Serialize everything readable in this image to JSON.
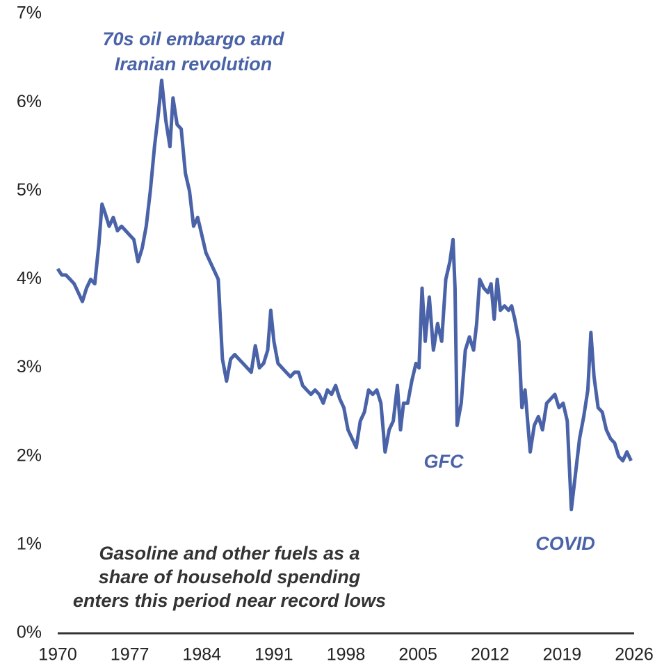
{
  "chart_data": {
    "type": "line",
    "series": [
      {
        "color": "#4a63a8",
        "x": [
          1970.0,
          1970.4,
          1970.8,
          1971.2,
          1971.6,
          1972.0,
          1972.4,
          1972.8,
          1973.2,
          1973.6,
          1974.0,
          1974.3,
          1974.6,
          1975.0,
          1975.4,
          1975.8,
          1976.2,
          1976.6,
          1977.0,
          1977.4,
          1977.8,
          1978.2,
          1978.6,
          1979.0,
          1979.4,
          1979.8,
          1980.1,
          1980.5,
          1980.9,
          1981.2,
          1981.6,
          1982.0,
          1982.4,
          1982.8,
          1983.2,
          1983.6,
          1984.0,
          1984.4,
          1984.8,
          1985.2,
          1985.6,
          1986.0,
          1986.4,
          1986.8,
          1987.2,
          1987.6,
          1988.0,
          1988.4,
          1988.8,
          1989.2,
          1989.6,
          1990.0,
          1990.4,
          1990.7,
          1991.0,
          1991.4,
          1991.8,
          1992.2,
          1992.6,
          1993.0,
          1993.4,
          1993.8,
          1994.2,
          1994.6,
          1995.0,
          1995.4,
          1995.8,
          1996.2,
          1996.6,
          1997.0,
          1997.4,
          1997.8,
          1998.2,
          1998.6,
          1999.0,
          1999.4,
          1999.8,
          2000.2,
          2000.6,
          2001.0,
          2001.4,
          2001.8,
          2002.2,
          2002.6,
          2003.0,
          2003.3,
          2003.6,
          2004.0,
          2004.4,
          2004.8,
          2005.1,
          2005.4,
          2005.7,
          2006.1,
          2006.5,
          2006.9,
          2007.3,
          2007.7,
          2008.1,
          2008.4,
          2008.6,
          2008.8,
          2009.2,
          2009.6,
          2010.0,
          2010.4,
          2010.7,
          2011.0,
          2011.4,
          2011.8,
          2012.1,
          2012.4,
          2012.7,
          2013.0,
          2013.4,
          2013.8,
          2014.1,
          2014.4,
          2014.8,
          2015.1,
          2015.4,
          2015.9,
          2016.3,
          2016.7,
          2017.1,
          2017.5,
          2017.9,
          2018.3,
          2018.7,
          2019.1,
          2019.5,
          2019.9,
          2020.3,
          2020.7,
          2021.1,
          2021.5,
          2021.8,
          2022.1,
          2022.5,
          2022.9,
          2023.3,
          2023.7,
          2024.1,
          2024.5,
          2024.9,
          2025.3,
          2025.7
        ],
        "values": [
          4.12,
          4.05,
          4.05,
          4.0,
          3.95,
          3.85,
          3.75,
          3.9,
          4.0,
          3.95,
          4.4,
          4.85,
          4.75,
          4.6,
          4.7,
          4.55,
          4.6,
          4.55,
          4.5,
          4.45,
          4.2,
          4.35,
          4.6,
          5.0,
          5.5,
          5.9,
          6.25,
          5.8,
          5.5,
          6.05,
          5.75,
          5.7,
          5.2,
          5.0,
          4.6,
          4.7,
          4.5,
          4.3,
          4.2,
          4.1,
          4.0,
          3.1,
          2.85,
          3.1,
          3.15,
          3.1,
          3.05,
          3.0,
          2.95,
          3.25,
          3.0,
          3.05,
          3.2,
          3.65,
          3.3,
          3.05,
          3.0,
          2.95,
          2.9,
          2.95,
          2.95,
          2.8,
          2.75,
          2.7,
          2.75,
          2.7,
          2.6,
          2.75,
          2.7,
          2.8,
          2.65,
          2.55,
          2.3,
          2.2,
          2.1,
          2.4,
          2.5,
          2.75,
          2.7,
          2.75,
          2.6,
          2.05,
          2.3,
          2.4,
          2.8,
          2.3,
          2.6,
          2.6,
          2.85,
          3.05,
          3.0,
          3.9,
          3.3,
          3.8,
          3.2,
          3.5,
          3.3,
          4.0,
          4.2,
          4.45,
          3.9,
          2.35,
          2.6,
          3.2,
          3.35,
          3.2,
          3.5,
          4.0,
          3.9,
          3.85,
          3.95,
          3.55,
          4.0,
          3.65,
          3.7,
          3.65,
          3.7,
          3.55,
          3.3,
          2.55,
          2.75,
          2.05,
          2.35,
          2.45,
          2.3,
          2.6,
          2.65,
          2.7,
          2.55,
          2.6,
          2.4,
          1.4,
          1.8,
          2.2,
          2.45,
          2.75,
          3.4,
          2.9,
          2.55,
          2.5,
          2.3,
          2.2,
          2.15,
          2.0,
          1.95,
          2.05,
          1.95
        ]
      }
    ],
    "xlim": [
      1970,
      2026
    ],
    "xticks": [
      1970,
      1977,
      1984,
      1991,
      1998,
      2005,
      2012,
      2019,
      2026
    ],
    "ylim": [
      0,
      7
    ],
    "yticks": [
      {
        "value": 0,
        "label": "0%"
      },
      {
        "value": 1,
        "label": "1%"
      },
      {
        "value": 2,
        "label": "2%"
      },
      {
        "value": 3,
        "label": "3%"
      },
      {
        "value": 4,
        "label": "4%"
      },
      {
        "value": 5,
        "label": "5%"
      },
      {
        "value": 6,
        "label": "6%"
      },
      {
        "value": 7,
        "label": "7%"
      }
    ],
    "grid": false,
    "annotations": [
      {
        "lines": [
          "70s oil embargo and",
          "Iranian revolution"
        ],
        "color": "#4a63a8"
      },
      {
        "lines": [
          "GFC"
        ],
        "color": "#4a63a8"
      },
      {
        "lines": [
          "COVID"
        ],
        "color": "#4a63a8"
      },
      {
        "lines": [
          "Gasoline and other fuels as a",
          "share of household spending",
          "enters this period near record lows"
        ],
        "color": "#333333"
      }
    ]
  }
}
